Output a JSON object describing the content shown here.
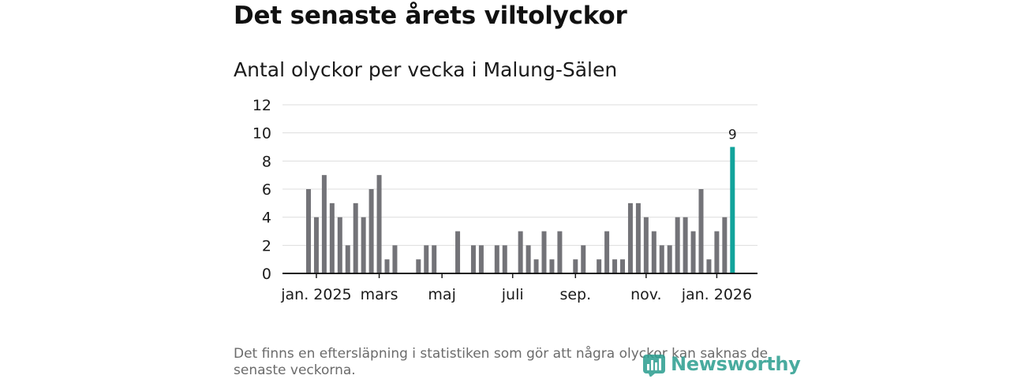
{
  "header": {
    "title": "Det senaste årets viltolyckor",
    "subtitle": "Antal olyckor per vecka i Malung-Sälen"
  },
  "footnote": "Det finns en eftersläpning i statistiken som gör att några olyckor kan saknas de senaste veckorna.",
  "logo": {
    "text": "Newsworthy",
    "icon": "newsworthy-chart-icon"
  },
  "colors": {
    "bar": "#737378",
    "highlight": "#12a39b",
    "grid": "#dddddd",
    "axis": "#1a1a1a"
  },
  "chart_data": {
    "type": "bar",
    "ylim": [
      0,
      12
    ],
    "yticks": [
      0,
      2,
      4,
      6,
      8,
      10,
      12
    ],
    "grid": true,
    "x_tick_labels": [
      {
        "label": "jan. 2025",
        "week": 1
      },
      {
        "label": "mars",
        "week": 9
      },
      {
        "label": "maj",
        "week": 17
      },
      {
        "label": "juli",
        "week": 26
      },
      {
        "label": "sep.",
        "week": 34
      },
      {
        "label": "nov.",
        "week": 43
      },
      {
        "label": "jan. 2026",
        "week": 52
      }
    ],
    "values": [
      6,
      4,
      7,
      5,
      4,
      2,
      5,
      4,
      6,
      7,
      1,
      2,
      0,
      0,
      1,
      2,
      2,
      0,
      0,
      3,
      0,
      2,
      2,
      0,
      2,
      2,
      0,
      3,
      2,
      1,
      3,
      1,
      3,
      0,
      1,
      2,
      0,
      1,
      3,
      1,
      1,
      5,
      5,
      4,
      3,
      2,
      2,
      4,
      4,
      3,
      6,
      1,
      3,
      4,
      9
    ],
    "highlight_index": 54,
    "highlight_label": "9"
  }
}
